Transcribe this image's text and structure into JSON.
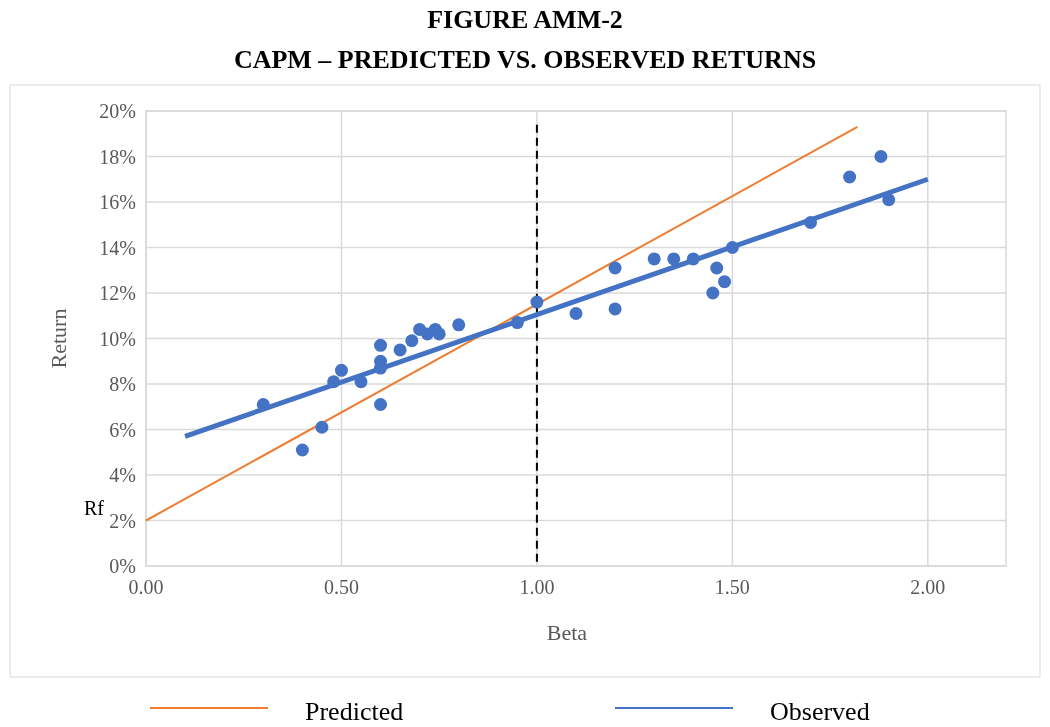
{
  "chart_data": {
    "type": "scatter",
    "title": "FIGURE AMM-2",
    "subtitle": "CAPM – PREDICTED VS. OBSERVED RETURNS",
    "xlabel": "Beta",
    "ylabel": "Return",
    "xlim": [
      0,
      2.2
    ],
    "xticks": [
      {
        "value": 0,
        "label": "0.00"
      },
      {
        "value": 0.5,
        "label": "0.50"
      },
      {
        "value": 1,
        "label": "1.00"
      },
      {
        "value": 1.5,
        "label": "1.50"
      },
      {
        "value": 2,
        "label": "2.00"
      }
    ],
    "ylim": [
      0,
      20
    ],
    "yticks": [
      {
        "value": 0,
        "label": "0%"
      },
      {
        "value": 2,
        "label": "2%"
      },
      {
        "value": 4,
        "label": "4%"
      },
      {
        "value": 6,
        "label": "6%"
      },
      {
        "value": 8,
        "label": "8%"
      },
      {
        "value": 10,
        "label": "10%"
      },
      {
        "value": 12,
        "label": "12%"
      },
      {
        "value": 14,
        "label": "14%"
      },
      {
        "value": 16,
        "label": "16%"
      },
      {
        "value": 18,
        "label": "18%"
      },
      {
        "value": 20,
        "label": "20%"
      }
    ],
    "grid": true,
    "legend": "bottom",
    "series": [
      {
        "marker": "circle",
        "color": "#4472c4",
        "x": [
          0.3,
          0.4,
          0.45,
          0.48,
          0.5,
          0.55,
          0.6,
          0.6,
          0.6,
          0.6,
          0.65,
          0.68,
          0.7,
          0.72,
          0.74,
          0.75,
          0.8,
          0.95,
          1.0,
          1.1,
          1.2,
          1.2,
          1.3,
          1.35,
          1.4,
          1.45,
          1.46,
          1.48,
          1.5,
          1.7,
          1.8,
          1.88,
          1.9
        ],
        "values": [
          7.1,
          5.1,
          6.1,
          8.1,
          8.6,
          8.1,
          9.7,
          9.0,
          8.7,
          7.1,
          9.5,
          9.9,
          10.4,
          10.2,
          10.4,
          10.2,
          10.6,
          10.7,
          11.6,
          11.1,
          11.3,
          13.1,
          13.5,
          13.5,
          13.5,
          12.0,
          13.1,
          12.5,
          14.0,
          15.1,
          17.1,
          18.0,
          16.1
        ]
      },
      {
        "type": "line",
        "name": "Predicted",
        "color": "#ed7d31",
        "x": [
          0,
          1.82
        ],
        "values": [
          2,
          19.3
        ]
      },
      {
        "type": "line",
        "name": "Observed",
        "color": "#4472c4",
        "x": [
          0.1,
          2.0
        ],
        "values": [
          5.7,
          17.0
        ]
      }
    ],
    "ref_lines": [
      {
        "axis": "x",
        "value": 1,
        "color": "#000000",
        "line_style": "dashed"
      }
    ],
    "annotations": [
      {
        "text": "Rf",
        "x": 0,
        "y": 2
      }
    ]
  }
}
